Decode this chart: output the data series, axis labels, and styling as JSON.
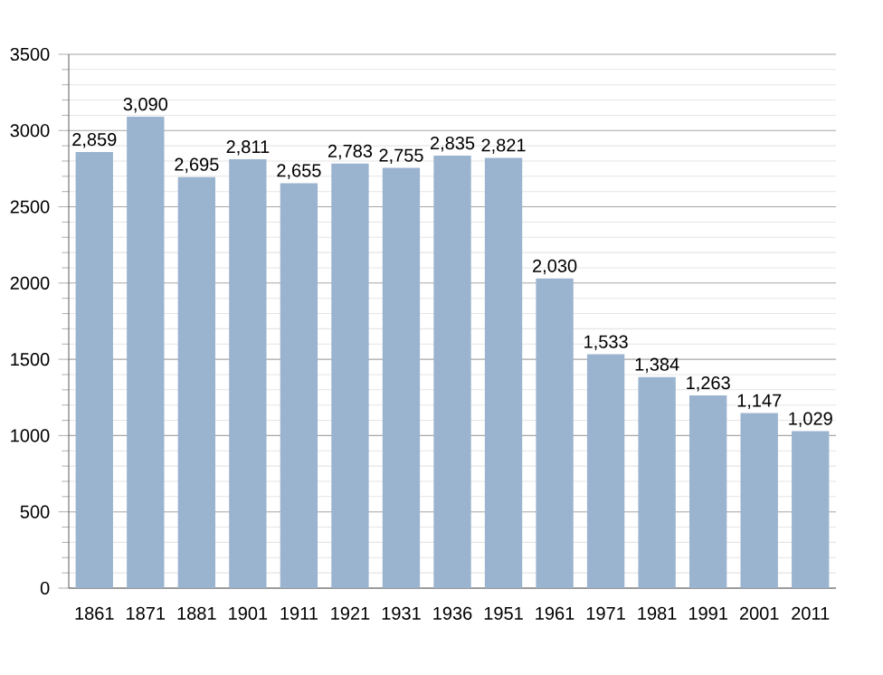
{
  "chart_data": {
    "type": "bar",
    "categories": [
      "1861",
      "1871",
      "1881",
      "1901",
      "1911",
      "1921",
      "1931",
      "1936",
      "1951",
      "1961",
      "1971",
      "1981",
      "1991",
      "2001",
      "2011"
    ],
    "values": [
      2859,
      3090,
      2695,
      2811,
      2655,
      2783,
      2755,
      2835,
      2821,
      2030,
      1533,
      1384,
      1263,
      1147,
      1029
    ],
    "value_labels": [
      "2,859",
      "3,090",
      "2,695",
      "2,811",
      "2,655",
      "2,783",
      "2,755",
      "2,835",
      "2,821",
      "2,030",
      "1,533",
      "1,384",
      "1,263",
      "1,147",
      "1,029"
    ],
    "color": "#9ab3cf",
    "ylim": [
      0,
      3500
    ],
    "yticks": [
      0,
      500,
      1000,
      1500,
      2000,
      2500,
      3000,
      3500
    ],
    "grid": "y"
  }
}
